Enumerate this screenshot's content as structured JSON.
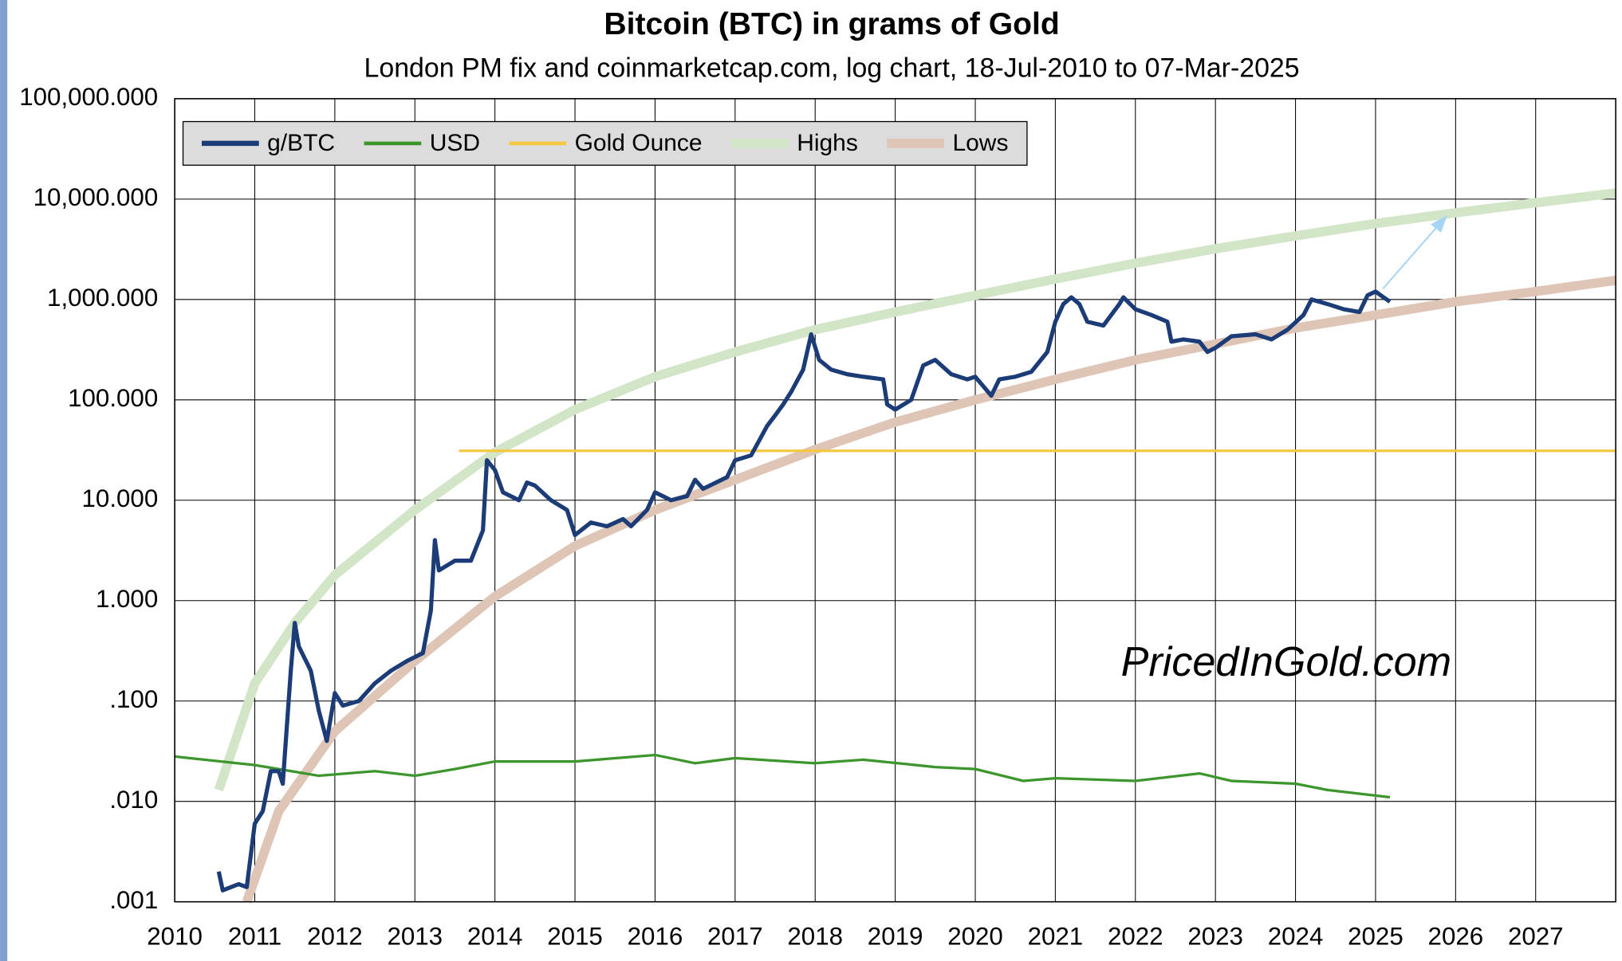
{
  "chart_data": {
    "type": "line",
    "title": "Bitcoin (BTC) in grams of Gold",
    "subtitle": "London PM fix and coinmarketcap.com, log chart, 18-Jul-2010 to 07-Mar-2025",
    "annotation": "PricedInGold.com",
    "log_y": true,
    "grid": true,
    "legend": "upper left",
    "xlim": [
      2010,
      2028
    ],
    "xticks": [
      2010,
      2011,
      2012,
      2013,
      2014,
      2015,
      2016,
      2017,
      2018,
      2019,
      2020,
      2021,
      2022,
      2023,
      2024,
      2025,
      2026,
      2027
    ],
    "ylim": [
      0.001,
      100000
    ],
    "yticks": [
      {
        "value": 0.001,
        "label": ".001"
      },
      {
        "value": 0.01,
        "label": ".010"
      },
      {
        "value": 0.1,
        "label": ".100"
      },
      {
        "value": 1,
        "label": "1.000"
      },
      {
        "value": 10,
        "label": "10.000"
      },
      {
        "value": 100,
        "label": "100.000"
      },
      {
        "value": 1000,
        "label": "1,000.000"
      },
      {
        "value": 10000,
        "label": "10,000.000"
      },
      {
        "value": 100000,
        "label": "100,000.000"
      }
    ],
    "series": [
      {
        "name": "g/BTC",
        "color": "#1c3c78",
        "width": 4,
        "x": [
          2010.55,
          2010.6,
          2010.8,
          2010.9,
          2011.0,
          2011.1,
          2011.2,
          2011.3,
          2011.35,
          2011.45,
          2011.5,
          2011.55,
          2011.7,
          2011.8,
          2011.9,
          2012.0,
          2012.1,
          2012.3,
          2012.5,
          2012.7,
          2012.9,
          2013.1,
          2013.2,
          2013.25,
          2013.3,
          2013.5,
          2013.7,
          2013.85,
          2013.9,
          2014.0,
          2014.1,
          2014.3,
          2014.4,
          2014.5,
          2014.7,
          2014.9,
          2015.0,
          2015.2,
          2015.4,
          2015.6,
          2015.7,
          2015.9,
          2016.0,
          2016.2,
          2016.4,
          2016.5,
          2016.6,
          2016.9,
          2017.0,
          2017.2,
          2017.4,
          2017.5,
          2017.6,
          2017.7,
          2017.85,
          2017.95,
          2018.05,
          2018.2,
          2018.4,
          2018.6,
          2018.85,
          2018.9,
          2019.0,
          2019.2,
          2019.35,
          2019.5,
          2019.7,
          2019.9,
          2020.0,
          2020.2,
          2020.3,
          2020.5,
          2020.7,
          2020.9,
          2021.0,
          2021.1,
          2021.2,
          2021.3,
          2021.4,
          2021.6,
          2021.8,
          2021.85,
          2022.0,
          2022.2,
          2022.4,
          2022.45,
          2022.6,
          2022.8,
          2022.9,
          2023.0,
          2023.2,
          2023.5,
          2023.7,
          2023.9,
          2024.1,
          2024.2,
          2024.4,
          2024.6,
          2024.8,
          2024.9,
          2025.0,
          2025.1,
          2025.18
        ],
        "values": [
          0.002,
          0.0013,
          0.0015,
          0.0014,
          0.006,
          0.008,
          0.02,
          0.02,
          0.015,
          0.2,
          0.6,
          0.35,
          0.2,
          0.08,
          0.04,
          0.12,
          0.09,
          0.1,
          0.15,
          0.2,
          0.25,
          0.3,
          0.8,
          4.0,
          2.0,
          2.5,
          2.5,
          5,
          25,
          20,
          12,
          10,
          15,
          14,
          10,
          8,
          4.5,
          6,
          5.5,
          6.5,
          5.5,
          8,
          12,
          10,
          11,
          16,
          13,
          17,
          25,
          28,
          55,
          70,
          90,
          120,
          200,
          450,
          250,
          200,
          180,
          170,
          160,
          90,
          80,
          100,
          220,
          250,
          180,
          160,
          170,
          110,
          160,
          170,
          190,
          300,
          600,
          900,
          1050,
          900,
          600,
          550,
          900,
          1050,
          800,
          700,
          600,
          380,
          400,
          380,
          300,
          330,
          430,
          450,
          400,
          500,
          700,
          1000,
          900,
          800,
          750,
          1100,
          1200,
          1050,
          950
        ]
      },
      {
        "name": "USD",
        "color": "#3c962c",
        "width": 2.5,
        "x": [
          2010.0,
          2011.0,
          2011.8,
          2012.5,
          2013.0,
          2013.5,
          2014.0,
          2015.0,
          2016.0,
          2016.5,
          2017.0,
          2018.0,
          2018.6,
          2019.5,
          2020.0,
          2020.6,
          2021.0,
          2022.0,
          2022.8,
          2023.2,
          2024.0,
          2024.4,
          2025.18
        ],
        "values": [
          0.028,
          0.023,
          0.018,
          0.02,
          0.018,
          0.021,
          0.025,
          0.025,
          0.029,
          0.024,
          0.027,
          0.024,
          0.026,
          0.022,
          0.021,
          0.016,
          0.017,
          0.016,
          0.019,
          0.016,
          0.015,
          0.013,
          0.011
        ]
      },
      {
        "name": "Gold Ounce",
        "color": "#f5c842",
        "width": 2.5,
        "x": [
          2013.55,
          2028
        ],
        "values": [
          31.1,
          31.1
        ]
      },
      {
        "name": "Highs",
        "color": "#d2e5c6",
        "width": 9,
        "x": [
          2010.55,
          2011.0,
          2011.5,
          2012.0,
          2013.0,
          2014.0,
          2015.0,
          2016.0,
          2017.0,
          2018.0,
          2019.0,
          2020.0,
          2021.0,
          2022.0,
          2023.0,
          2024.0,
          2025.0,
          2026.0,
          2027.0,
          2028.0
        ],
        "values": [
          0.013,
          0.15,
          0.6,
          1.8,
          8,
          30,
          80,
          170,
          300,
          500,
          750,
          1100,
          1600,
          2300,
          3200,
          4300,
          5700,
          7300,
          9200,
          11500
        ]
      },
      {
        "name": "Lows",
        "color": "#dfc5b6",
        "width": 9,
        "x": [
          2010.9,
          2011.3,
          2012.0,
          2013.0,
          2014.0,
          2015.0,
          2016.0,
          2017.0,
          2018.0,
          2019.0,
          2020.0,
          2021.0,
          2022.0,
          2023.0,
          2024.0,
          2025.0,
          2026.0,
          2027.0,
          2028.0
        ],
        "values": [
          0.001,
          0.008,
          0.05,
          0.25,
          1.1,
          3.5,
          8,
          16,
          32,
          60,
          100,
          160,
          250,
          360,
          520,
          700,
          950,
          1200,
          1550
        ]
      }
    ]
  }
}
